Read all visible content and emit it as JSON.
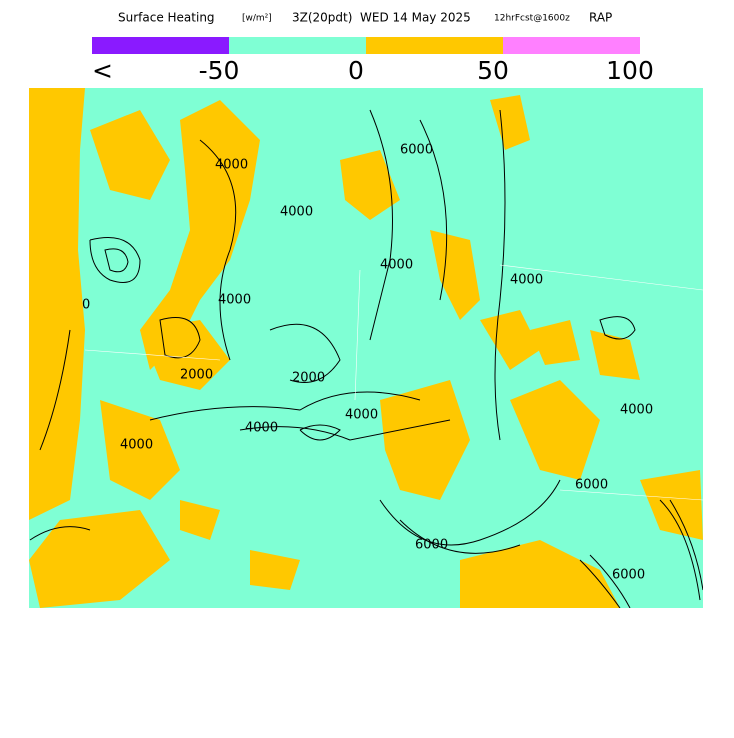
{
  "header": {
    "title": "Surface Heating",
    "units": "[w/m²]",
    "time": "3Z(20pdt)",
    "date": "WED 14 May 2025",
    "forecast": "12hrFcst@1600z",
    "model": "RAP"
  },
  "legend": {
    "colors": [
      "#8a1aff",
      "#7fffd4",
      "#ffc800",
      "#ff80ff"
    ],
    "labels": [
      "<",
      "-50",
      "0",
      "50",
      "100"
    ]
  },
  "map": {
    "contour_labels": [
      "4000",
      "6000",
      "4000",
      "4000",
      "4000",
      "2000",
      "4000",
      "2000",
      "4000",
      "4000",
      "6000",
      "4000",
      "4000",
      "6000",
      "6000",
      "0"
    ]
  }
}
